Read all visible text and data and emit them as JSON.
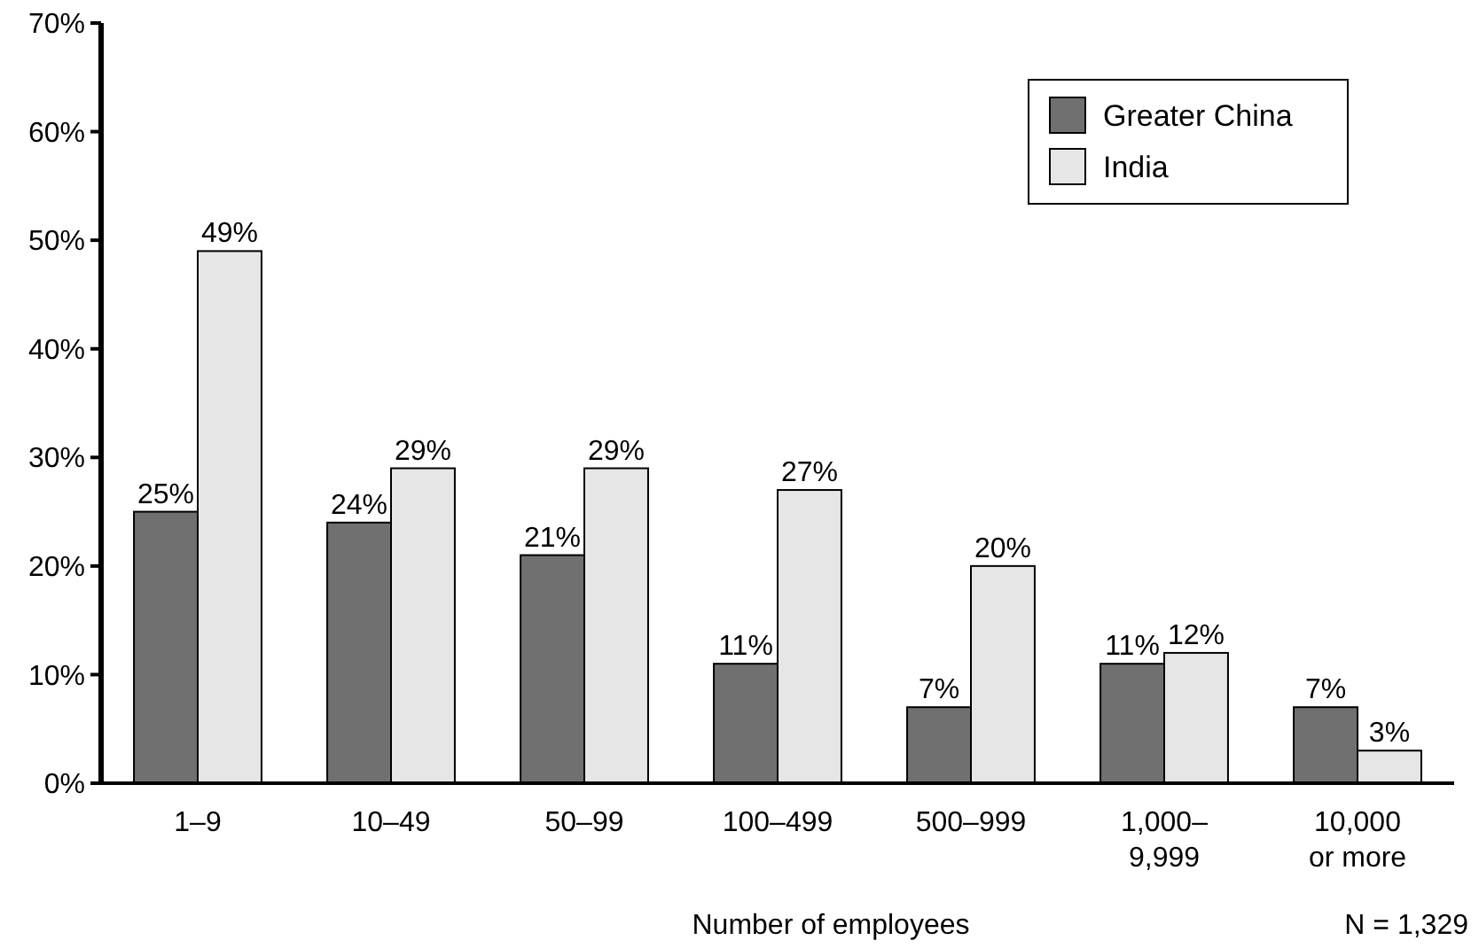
{
  "chart_data": {
    "type": "bar",
    "xlabel": "Number of employees",
    "annotations": [
      "N = 1,329"
    ],
    "categories": [
      "1–9",
      "10–49",
      "50–99",
      "100–499",
      "500–999",
      "1,000–\n9,999",
      "10,000\nor more"
    ],
    "series": [
      {
        "name": "Greater China",
        "color": "#707070",
        "values": [
          25,
          24,
          21,
          11,
          7,
          11,
          7
        ],
        "value_labels": [
          "25%",
          "24%",
          "21%",
          "11%",
          "7%",
          "11%",
          "7%"
        ]
      },
      {
        "name": "India",
        "color": "#e6e6e6",
        "values": [
          49,
          29,
          29,
          27,
          20,
          12,
          3
        ],
        "value_labels": [
          "49%",
          "29%",
          "29%",
          "27%",
          "20%",
          "12%",
          "3%"
        ]
      }
    ],
    "ylim": [
      0,
      70
    ],
    "yticks": [
      {
        "value": 0,
        "label": "0%"
      },
      {
        "value": 10,
        "label": "10%"
      },
      {
        "value": 20,
        "label": "20%"
      },
      {
        "value": 30,
        "label": "30%"
      },
      {
        "value": 40,
        "label": "40%"
      },
      {
        "value": 50,
        "label": "50%"
      },
      {
        "value": 60,
        "label": "60%"
      },
      {
        "value": 70,
        "label": "70%"
      }
    ],
    "legend": "top right",
    "grid": false
  }
}
